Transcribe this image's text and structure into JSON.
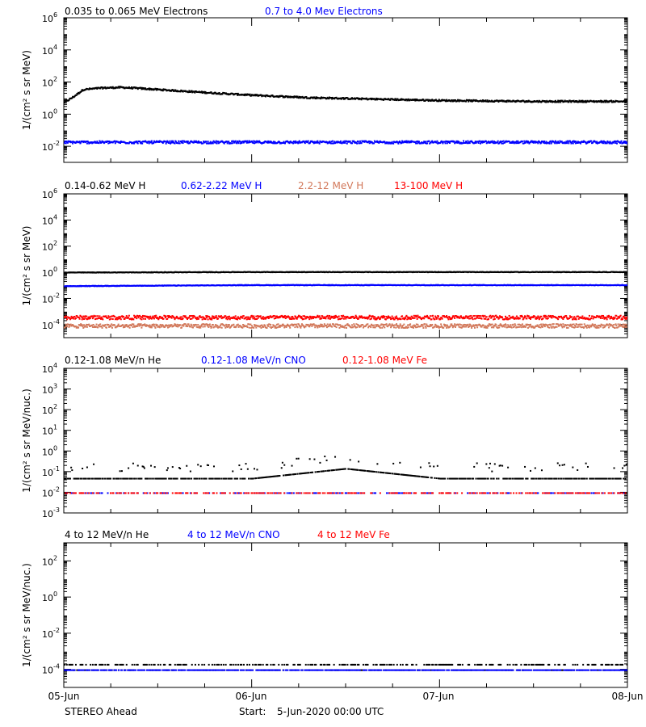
{
  "footer": {
    "spacecraft": "STEREO Ahead",
    "start_label": "Start:",
    "start_value": "5-Jun-2020 00:00 UTC"
  },
  "x_ticks": [
    "05-Jun",
    "06-Jun",
    "07-Jun",
    "08-Jun"
  ],
  "chart_data": [
    {
      "type": "scatter",
      "id": "electrons",
      "ylabel": "1/(cm² s sr MeV)",
      "yscale": "log",
      "ylim": [
        0.001,
        1000000
      ],
      "yticks": [
        {
          "value": 0.01,
          "base": "10",
          "exp": "-2"
        },
        {
          "value": 1,
          "base": "10",
          "exp": "0"
        },
        {
          "value": 100,
          "base": "10",
          "exp": "2"
        },
        {
          "value": 10000,
          "base": "10",
          "exp": "4"
        },
        {
          "value": 1000000,
          "base": "10",
          "exp": "6"
        }
      ],
      "xlim_days": [
        0,
        3
      ],
      "series": [
        {
          "name": "0.035 to 0.065 MeV Electrons",
          "color": "#000000",
          "x": [
            0,
            0.05,
            0.1,
            0.2,
            0.3,
            0.4,
            0.6,
            0.8,
            1.0,
            1.3,
            1.6,
            2.0,
            2.5,
            3.0
          ],
          "y": [
            6,
            14,
            38,
            48,
            52,
            45,
            32,
            23,
            17,
            12,
            10,
            8,
            7,
            7
          ]
        },
        {
          "name": "0.7 to 4.0 Mev Electrons",
          "color": "#0000ff",
          "x": [
            0,
            1.0,
            2.0,
            3.0
          ],
          "y": [
            0.02,
            0.02,
            0.02,
            0.02
          ]
        }
      ]
    },
    {
      "type": "scatter",
      "id": "protons",
      "ylabel": "1/(cm² s sr MeV)",
      "yscale": "log",
      "ylim": [
        1e-05,
        1000000
      ],
      "yticks": [
        {
          "value": 0.0001,
          "base": "10",
          "exp": "-4"
        },
        {
          "value": 0.01,
          "base": "10",
          "exp": "-2"
        },
        {
          "value": 1,
          "base": "10",
          "exp": "0"
        },
        {
          "value": 100,
          "base": "10",
          "exp": "2"
        },
        {
          "value": 10000,
          "base": "10",
          "exp": "4"
        },
        {
          "value": 1000000,
          "base": "10",
          "exp": "6"
        }
      ],
      "xlim_days": [
        0,
        3
      ],
      "series": [
        {
          "name": "0.14-0.62 MeV H",
          "color": "#000000",
          "x": [
            0,
            1.0,
            2.0,
            3.0
          ],
          "y": [
            1.1,
            1.2,
            1.2,
            1.2
          ]
        },
        {
          "name": "0.62-2.22 MeV H",
          "color": "#0000ff",
          "x": [
            0,
            1.0,
            2.0,
            3.0
          ],
          "y": [
            0.1,
            0.12,
            0.12,
            0.12
          ]
        },
        {
          "name": "2.2-12 MeV H",
          "color": "#d2785a",
          "x": [
            0,
            1.0,
            2.0,
            3.0
          ],
          "y": [
            9e-05,
            9e-05,
            9e-05,
            9e-05
          ]
        },
        {
          "name": "13-100 MeV H",
          "color": "#ff0000",
          "x": [
            0,
            1.0,
            2.0,
            3.0
          ],
          "y": [
            0.0004,
            0.0004,
            0.0004,
            0.0004
          ]
        }
      ]
    },
    {
      "type": "scatter",
      "id": "heavy-low",
      "ylabel": "1/(cm² s sr MeV/nuc.)",
      "yscale": "log",
      "ylim": [
        0.001,
        10000
      ],
      "yticks": [
        {
          "value": 0.001,
          "base": "10",
          "exp": "-3"
        },
        {
          "value": 0.01,
          "base": "10",
          "exp": "-2"
        },
        {
          "value": 0.1,
          "base": "10",
          "exp": "-1"
        },
        {
          "value": 1,
          "base": "10",
          "exp": "0"
        },
        {
          "value": 10,
          "base": "10",
          "exp": "1"
        },
        {
          "value": 100,
          "base": "10",
          "exp": "2"
        },
        {
          "value": 1000,
          "base": "10",
          "exp": "3"
        },
        {
          "value": 10000,
          "base": "10",
          "exp": "4"
        }
      ],
      "xlim_days": [
        0,
        3
      ],
      "series": [
        {
          "name": "0.12-1.08 MeV/n He",
          "color": "#000000",
          "x": [
            0,
            1.0,
            1.5,
            2.0,
            3.0
          ],
          "y": [
            0.05,
            0.05,
            0.15,
            0.05,
            0.05
          ]
        },
        {
          "name": "0.12-1.08 MeV/n CNO",
          "color": "#0000ff",
          "x": [
            0,
            1.0,
            2.0,
            3.0
          ],
          "y": [
            0.01,
            0.01,
            0.01,
            0.01
          ]
        },
        {
          "name": "0.12-1.08 MeV Fe",
          "color": "#ff0000",
          "x": [
            0,
            1.0,
            2.0,
            3.0
          ],
          "y": [
            0.01,
            0.01,
            0.01,
            0.01
          ]
        }
      ]
    },
    {
      "type": "scatter",
      "id": "heavy-high",
      "ylabel": "1/(cm² s sr MeV/nuc.)",
      "yscale": "log",
      "ylim": [
        1e-05,
        1000
      ],
      "yticks": [
        {
          "value": 0.0001,
          "base": "10",
          "exp": "-4"
        },
        {
          "value": 0.01,
          "base": "10",
          "exp": "-2"
        },
        {
          "value": 1,
          "base": "10",
          "exp": "0"
        },
        {
          "value": 100,
          "base": "10",
          "exp": "2"
        }
      ],
      "xlim_days": [
        0,
        3
      ],
      "series": [
        {
          "name": "4 to 12 MeV/n He",
          "color": "#000000",
          "x": [
            0,
            1.0,
            2.0,
            3.0
          ],
          "y": [
            0.0002,
            0.0002,
            0.0002,
            0.0002
          ]
        },
        {
          "name": "4 to 12 MeV/n CNO",
          "color": "#0000ff",
          "x": [
            0,
            1.0,
            2.0,
            3.0
          ],
          "y": [
            0.0001,
            0.0001,
            0.0001,
            0.0001
          ]
        },
        {
          "name": "4 to 12 MeV Fe",
          "color": "#ff0000",
          "x": [],
          "y": []
        }
      ]
    }
  ]
}
